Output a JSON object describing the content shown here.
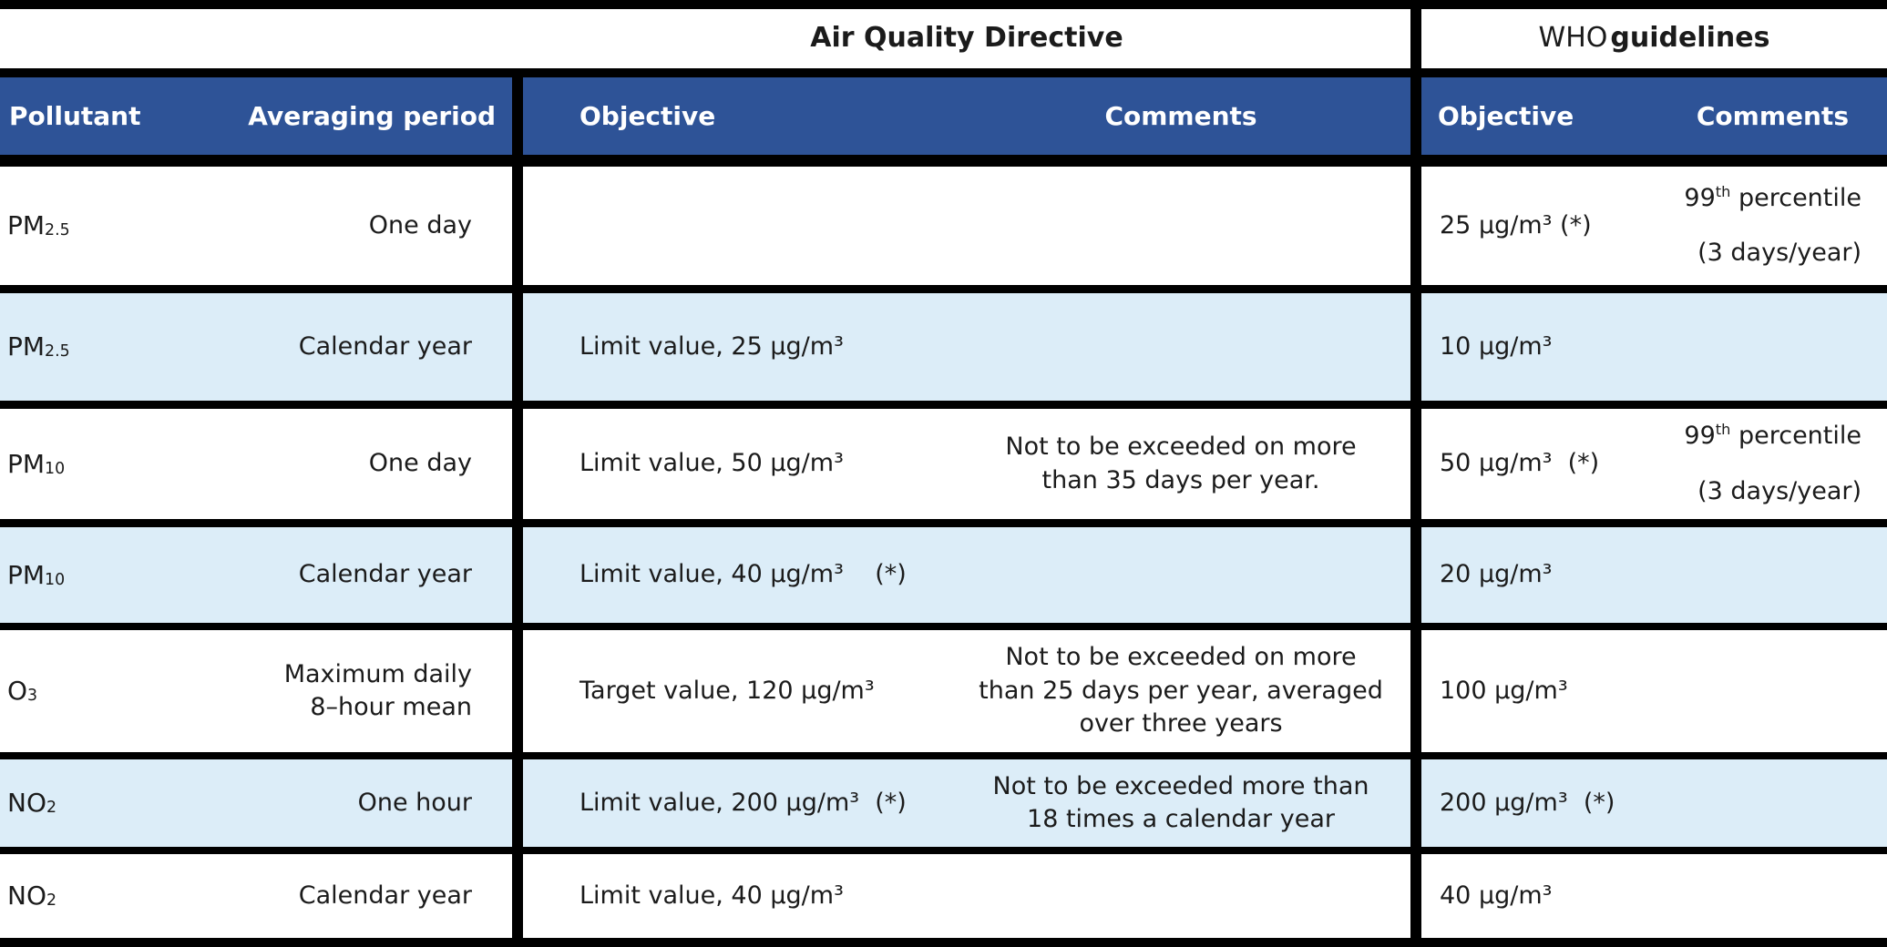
{
  "titles": {
    "aqd": "Air Quality Directive",
    "who_normal": "WHO",
    "who_bold": "guidelines"
  },
  "header": {
    "pollutant": "Pollutant",
    "period": "Averaging period",
    "aqd_objective": "Objective",
    "aqd_comments": "Comments",
    "who_objective": "Objective",
    "who_comments": "Comments"
  },
  "colors": {
    "header_blue": "#2E5397",
    "row_alt_blue": "#DCEDF8",
    "border_black": "#000000"
  },
  "rows": [
    {
      "pollutant": {
        "base": "PM",
        "sub": "2.5"
      },
      "period": "One day",
      "aqd_objective": "",
      "aqd_comments": "",
      "who_objective": "25 µg/m³ (*)",
      "who_comment": {
        "l1a": "99",
        "l1b": "th",
        "l1c": " percentile",
        "l2": "(3 days/year)"
      }
    },
    {
      "pollutant": {
        "base": "PM",
        "sub": "2.5"
      },
      "period": "Calendar year",
      "aqd_objective": "Limit value, 25 µg/m³",
      "aqd_comments": "",
      "who_objective": "10 µg/m³"
    },
    {
      "pollutant": {
        "base": "PM",
        "sub": "10"
      },
      "period": "One day",
      "aqd_objective": "Limit value, 50 µg/m³",
      "aqd_comments": "Not to be exceeded on more\nthan 35 days per year.",
      "who_objective": "50 µg/m³  (*)",
      "who_comment": {
        "l1a": "99",
        "l1b": "th",
        "l1c": " percentile",
        "l2": "(3 days/year)"
      }
    },
    {
      "pollutant": {
        "base": "PM",
        "sub": "10"
      },
      "period": "Calendar year",
      "aqd_objective": "Limit value, 40 µg/m³    (*)",
      "aqd_comments": "",
      "who_objective": "20 µg/m³"
    },
    {
      "pollutant": {
        "base": "O",
        "sub": "3"
      },
      "period": "Maximum daily\n8–hour mean",
      "aqd_objective": "Target value, 120 µg/m³",
      "aqd_comments": "Not to be exceeded on more\nthan 25 days per year, averaged\nover three years",
      "who_objective": "100 µg/m³"
    },
    {
      "pollutant": {
        "base": "NO",
        "sub": "2"
      },
      "period": "One hour",
      "aqd_objective": "Limit value, 200 µg/m³  (*)",
      "aqd_comments": "Not to be exceeded more than\n18 times a calendar year",
      "who_objective": "200 µg/m³  (*)"
    },
    {
      "pollutant": {
        "base": "NO",
        "sub": "2"
      },
      "period": "Calendar year",
      "aqd_objective": "Limit value, 40 µg/m³",
      "aqd_comments": "",
      "who_objective": "40 µg/m³"
    }
  ]
}
